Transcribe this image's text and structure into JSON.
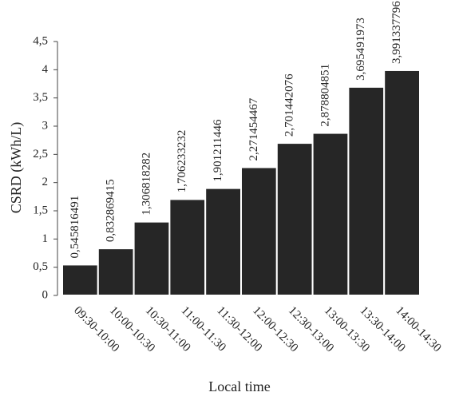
{
  "chart_data": {
    "type": "bar",
    "x_label": "Local time",
    "y_label": "CSRD (kWh/L)",
    "categories": [
      "09:30-10:00",
      "10:00-10:30",
      "10:30-11:00",
      "11:00-11:30",
      "11:30-12:00",
      "12:00-12:30",
      "12:30-13:00",
      "13:00-13:30",
      "13:30-14:00",
      "14:00-14:30"
    ],
    "values": [
      0.545816491,
      0.832869415,
      1.306818282,
      1.706233232,
      1.901211446,
      2.271454467,
      2.701442076,
      2.878804851,
      3.695491973,
      3.991337796
    ],
    "value_labels": [
      "0,545816491",
      "0,832869415",
      "1,306818282",
      "1,706233232",
      "1,901211446",
      "2,271454467",
      "2,701442076",
      "2,878804851",
      "3,695491973",
      "3,991337796"
    ],
    "color": "#262626",
    "ylim": [
      0,
      4.5
    ],
    "yticks": [
      0,
      {
        "value": 0.5,
        "label": "0,5"
      },
      1,
      {
        "value": 1.5,
        "label": "1,5"
      },
      2,
      {
        "value": 2.5,
        "label": "2,5"
      },
      3,
      {
        "value": 3.5,
        "label": "3,5"
      },
      4,
      {
        "value": 4.5,
        "label": "4,5"
      }
    ],
    "grid": false
  }
}
